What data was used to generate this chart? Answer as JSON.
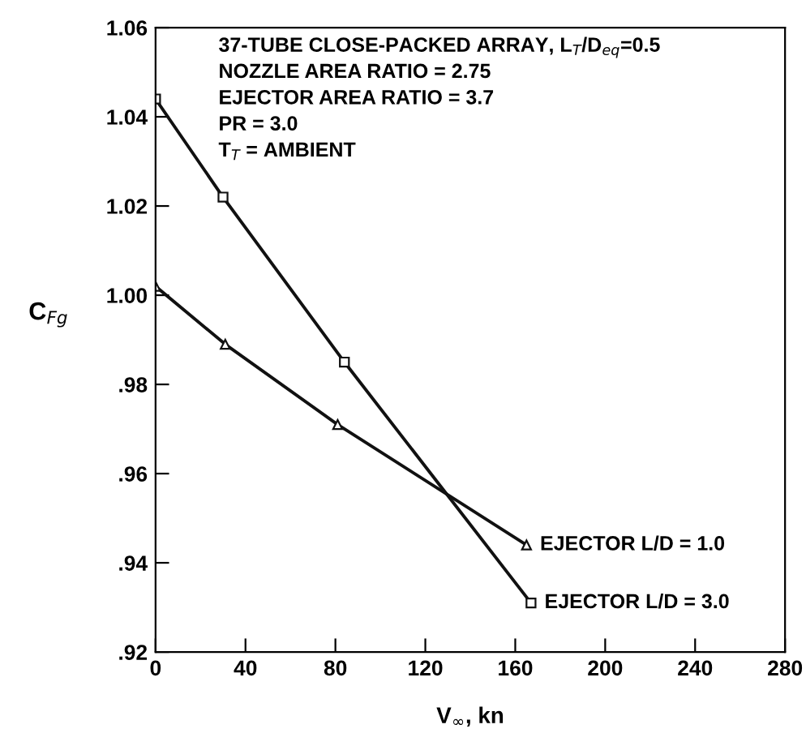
{
  "chart_data": {
    "type": "line",
    "xlabel": "V$_{∞}$, kn",
    "ylabel": "C$_{Fg}$",
    "xlim": [
      0,
      280
    ],
    "xticks": [
      0,
      40,
      80,
      120,
      160,
      200,
      240,
      280
    ],
    "ylim": [
      0.92,
      1.06
    ],
    "yticks": [
      {
        "value": 0.92,
        "label": ".92"
      },
      {
        "value": 0.94,
        "label": ".94"
      },
      {
        "value": 0.96,
        "label": ".96"
      },
      {
        "value": 0.98,
        "label": ".98"
      },
      {
        "value": 1.0,
        "label": "1.00"
      },
      {
        "value": 1.02,
        "label": "1.02"
      },
      {
        "value": 1.04,
        "label": "1.04"
      },
      {
        "value": 1.06,
        "label": "1.06"
      }
    ],
    "grid": false,
    "legend": false,
    "line_style": "solid",
    "series": [
      {
        "name": "EJECTOR L/D = 1.0",
        "color": "#111111",
        "marker": "triangle",
        "x": [
          0,
          31,
          81,
          165
        ],
        "values": [
          1.002,
          0.989,
          0.971,
          0.944
        ]
      },
      {
        "name": "EJECTOR L/D = 3.0",
        "color": "#111111",
        "marker": "square",
        "x": [
          0,
          30,
          84,
          167
        ],
        "values": [
          1.044,
          1.022,
          0.985,
          0.931
        ]
      }
    ],
    "annotations": [
      "37-TUBE CLOSE-PACKED ARRAY, L$_{T}$/D$_{eq}$=0.5",
      "NOZZLE AREA RATIO = 2.75",
      "EJECTOR AREA RATIO = 3.7",
      "PR = 3.0",
      "T$_{T}$ = AMBIENT"
    ]
  }
}
